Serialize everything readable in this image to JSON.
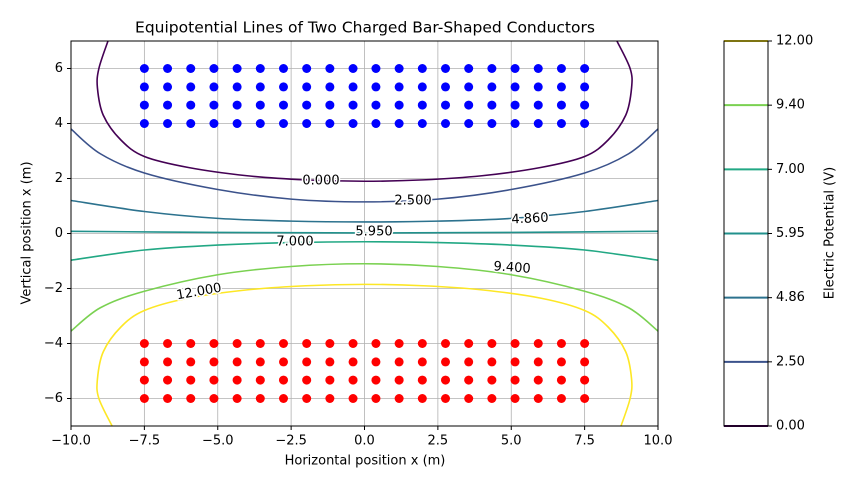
{
  "chart_data": {
    "type": "contour",
    "title": "Equipotential Lines of Two Charged Bar-Shaped Conductors",
    "x_label": "Horizontal position x (m)",
    "y_label": "Vertical position x (m)",
    "xlim": [
      -10,
      10
    ],
    "ylim": [
      -7,
      7
    ],
    "xticks": [
      {
        "value": -10,
        "label": "−10.0"
      },
      {
        "value": -7.5,
        "label": "−7.5"
      },
      {
        "value": -5,
        "label": "−5.0"
      },
      {
        "value": -2.5,
        "label": "−2.5"
      },
      {
        "value": 0,
        "label": "0.0"
      },
      {
        "value": 2.5,
        "label": "2.5"
      },
      {
        "value": 5,
        "label": "5.0"
      },
      {
        "value": 7.5,
        "label": "7.5"
      },
      {
        "value": 10,
        "label": "10.0"
      }
    ],
    "yticks": [
      {
        "value": -6,
        "label": "−6"
      },
      {
        "value": -4,
        "label": "−4"
      },
      {
        "value": -2,
        "label": "−2"
      },
      0,
      2,
      4,
      6
    ],
    "grid": true,
    "points": [
      {
        "color": "#0000ff",
        "x": [
          -7.5,
          -6.71,
          -5.92,
          -5.13,
          -4.34,
          -3.55,
          -2.76,
          -1.97,
          -1.18,
          -0.39,
          0.39,
          1.18,
          1.97,
          2.76,
          3.55,
          4.34,
          5.13,
          5.92,
          6.71,
          7.5,
          -7.5,
          -6.71,
          -5.92,
          -5.13,
          -4.34,
          -3.55,
          -2.76,
          -1.97,
          -1.18,
          -0.39,
          0.39,
          1.18,
          1.97,
          2.76,
          3.55,
          4.34,
          5.13,
          5.92,
          6.71,
          7.5,
          -7.5,
          -6.71,
          -5.92,
          -5.13,
          -4.34,
          -3.55,
          -2.76,
          -1.97,
          -1.18,
          -0.39,
          0.39,
          1.18,
          1.97,
          2.76,
          3.55,
          4.34,
          5.13,
          5.92,
          6.71,
          7.5,
          -7.5,
          -6.71,
          -5.92,
          -5.13,
          -4.34,
          -3.55,
          -2.76,
          -1.97,
          -1.18,
          -0.39,
          0.39,
          1.18,
          1.97,
          2.76,
          3.55,
          4.34,
          5.13,
          5.92,
          6.71,
          7.5
        ],
        "y": [
          6,
          6,
          6,
          6,
          6,
          6,
          6,
          6,
          6,
          6,
          6,
          6,
          6,
          6,
          6,
          6,
          6,
          6,
          6,
          6,
          5.33,
          5.33,
          5.33,
          5.33,
          5.33,
          5.33,
          5.33,
          5.33,
          5.33,
          5.33,
          5.33,
          5.33,
          5.33,
          5.33,
          5.33,
          5.33,
          5.33,
          5.33,
          5.33,
          5.33,
          4.67,
          4.67,
          4.67,
          4.67,
          4.67,
          4.67,
          4.67,
          4.67,
          4.67,
          4.67,
          4.67,
          4.67,
          4.67,
          4.67,
          4.67,
          4.67,
          4.67,
          4.67,
          4.67,
          4.67,
          4,
          4,
          4,
          4,
          4,
          4,
          4,
          4,
          4,
          4,
          4,
          4,
          4,
          4,
          4,
          4,
          4,
          4,
          4,
          4
        ]
      },
      {
        "color": "#ff0000",
        "x": [
          -7.5,
          -6.71,
          -5.92,
          -5.13,
          -4.34,
          -3.55,
          -2.76,
          -1.97,
          -1.18,
          -0.39,
          0.39,
          1.18,
          1.97,
          2.76,
          3.55,
          4.34,
          5.13,
          5.92,
          6.71,
          7.5,
          -7.5,
          -6.71,
          -5.92,
          -5.13,
          -4.34,
          -3.55,
          -2.76,
          -1.97,
          -1.18,
          -0.39,
          0.39,
          1.18,
          1.97,
          2.76,
          3.55,
          4.34,
          5.13,
          5.92,
          6.71,
          7.5,
          -7.5,
          -6.71,
          -5.92,
          -5.13,
          -4.34,
          -3.55,
          -2.76,
          -1.97,
          -1.18,
          -0.39,
          0.39,
          1.18,
          1.97,
          2.76,
          3.55,
          4.34,
          5.13,
          5.92,
          6.71,
          7.5,
          -7.5,
          -6.71,
          -5.92,
          -5.13,
          -4.34,
          -3.55,
          -2.76,
          -1.97,
          -1.18,
          -0.39,
          0.39,
          1.18,
          1.97,
          2.76,
          3.55,
          4.34,
          5.13,
          5.92,
          6.71,
          7.5
        ],
        "y": [
          -4,
          -4,
          -4,
          -4,
          -4,
          -4,
          -4,
          -4,
          -4,
          -4,
          -4,
          -4,
          -4,
          -4,
          -4,
          -4,
          -4,
          -4,
          -4,
          -4,
          -4.67,
          -4.67,
          -4.67,
          -4.67,
          -4.67,
          -4.67,
          -4.67,
          -4.67,
          -4.67,
          -4.67,
          -4.67,
          -4.67,
          -4.67,
          -4.67,
          -4.67,
          -4.67,
          -4.67,
          -4.67,
          -4.67,
          -4.67,
          -5.33,
          -5.33,
          -5.33,
          -5.33,
          -5.33,
          -5.33,
          -5.33,
          -5.33,
          -5.33,
          -5.33,
          -5.33,
          -5.33,
          -5.33,
          -5.33,
          -5.33,
          -5.33,
          -5.33,
          -5.33,
          -5.33,
          -5.33,
          -6,
          -6,
          -6,
          -6,
          -6,
          -6,
          -6,
          -6,
          -6,
          -6,
          -6,
          -6,
          -6,
          -6,
          -6,
          -6,
          -6,
          -6,
          -6,
          -6
        ]
      }
    ],
    "contours": [
      {
        "label": "0.000",
        "color": "#440154",
        "x": [
          -8.74,
          -9.05,
          -9.1,
          -8.9,
          -8.3,
          -7.5,
          -6,
          -4,
          -2,
          0,
          2,
          4,
          6,
          7.5,
          8.3,
          8.9,
          9.1,
          9.05,
          8.6
        ],
        "y": [
          7,
          6,
          5.3,
          4.3,
          3.4,
          2.8,
          2.4,
          2.1,
          1.95,
          1.9,
          1.95,
          2.1,
          2.4,
          2.8,
          3.4,
          4.3,
          5.3,
          6,
          7
        ]
      },
      {
        "label": "2.500",
        "color": "#3b528b",
        "x": [
          -10,
          -9,
          -7.5,
          -5,
          -2.5,
          0,
          2.5,
          5,
          7.5,
          9,
          10
        ],
        "y": [
          3.8,
          2.9,
          2.2,
          1.6,
          1.25,
          1.15,
          1.25,
          1.6,
          2.2,
          2.9,
          3.8
        ]
      },
      {
        "label": "4.860",
        "color": "#2c728e",
        "x": [
          -10,
          -7.5,
          -5,
          -2.5,
          0,
          2.5,
          5,
          7.5,
          10
        ],
        "y": [
          1.2,
          0.8,
          0.55,
          0.45,
          0.42,
          0.45,
          0.55,
          0.8,
          1.2
        ]
      },
      {
        "label": "5.950",
        "color": "#21918c",
        "x": [
          -10,
          -5,
          0,
          5,
          10
        ],
        "y": [
          0.08,
          0.04,
          0.02,
          0.04,
          0.08
        ]
      },
      {
        "label": "7.000",
        "color": "#22a884",
        "x": [
          -10,
          -7.5,
          -5,
          -2.5,
          0,
          2.5,
          5,
          7.5,
          10
        ],
        "y": [
          -0.97,
          -0.6,
          -0.42,
          -0.33,
          -0.3,
          -0.33,
          -0.42,
          -0.6,
          -0.97
        ]
      },
      {
        "label": "9.400",
        "color": "#7ad151",
        "x": [
          -10,
          -9,
          -7.5,
          -5,
          -2.5,
          0,
          2.5,
          5,
          7.5,
          9,
          10
        ],
        "y": [
          -3.55,
          -2.7,
          -2.1,
          -1.5,
          -1.2,
          -1.1,
          -1.2,
          -1.5,
          -2.1,
          -2.7,
          -3.55
        ]
      },
      {
        "label": "12.000",
        "color": "#fde725",
        "x": [
          -8.6,
          -9.05,
          -9.1,
          -8.9,
          -8.3,
          -7.5,
          -6,
          -4,
          -2,
          0,
          2,
          4,
          6,
          7.5,
          8.3,
          8.9,
          9.1,
          9.05,
          8.74
        ],
        "y": [
          -7,
          -6,
          -5.3,
          -4.3,
          -3.4,
          -2.8,
          -2.35,
          -2.05,
          -1.9,
          -1.85,
          -1.9,
          -2.05,
          -2.35,
          -2.8,
          -3.4,
          -4.3,
          -5.3,
          -6,
          -7
        ]
      }
    ],
    "colorbar": {
      "label": "Electric Potential (V)",
      "ticks": [
        {
          "value": 0,
          "label": "0.00"
        },
        {
          "value": 2.5,
          "label": "2.50"
        },
        {
          "value": 4.86,
          "label": "4.86"
        },
        {
          "value": 5.95,
          "label": "5.95"
        },
        {
          "value": 7,
          "label": "7.00"
        },
        {
          "value": 9.4,
          "label": "9.40"
        },
        {
          "value": 12,
          "label": "12.00"
        }
      ]
    }
  }
}
